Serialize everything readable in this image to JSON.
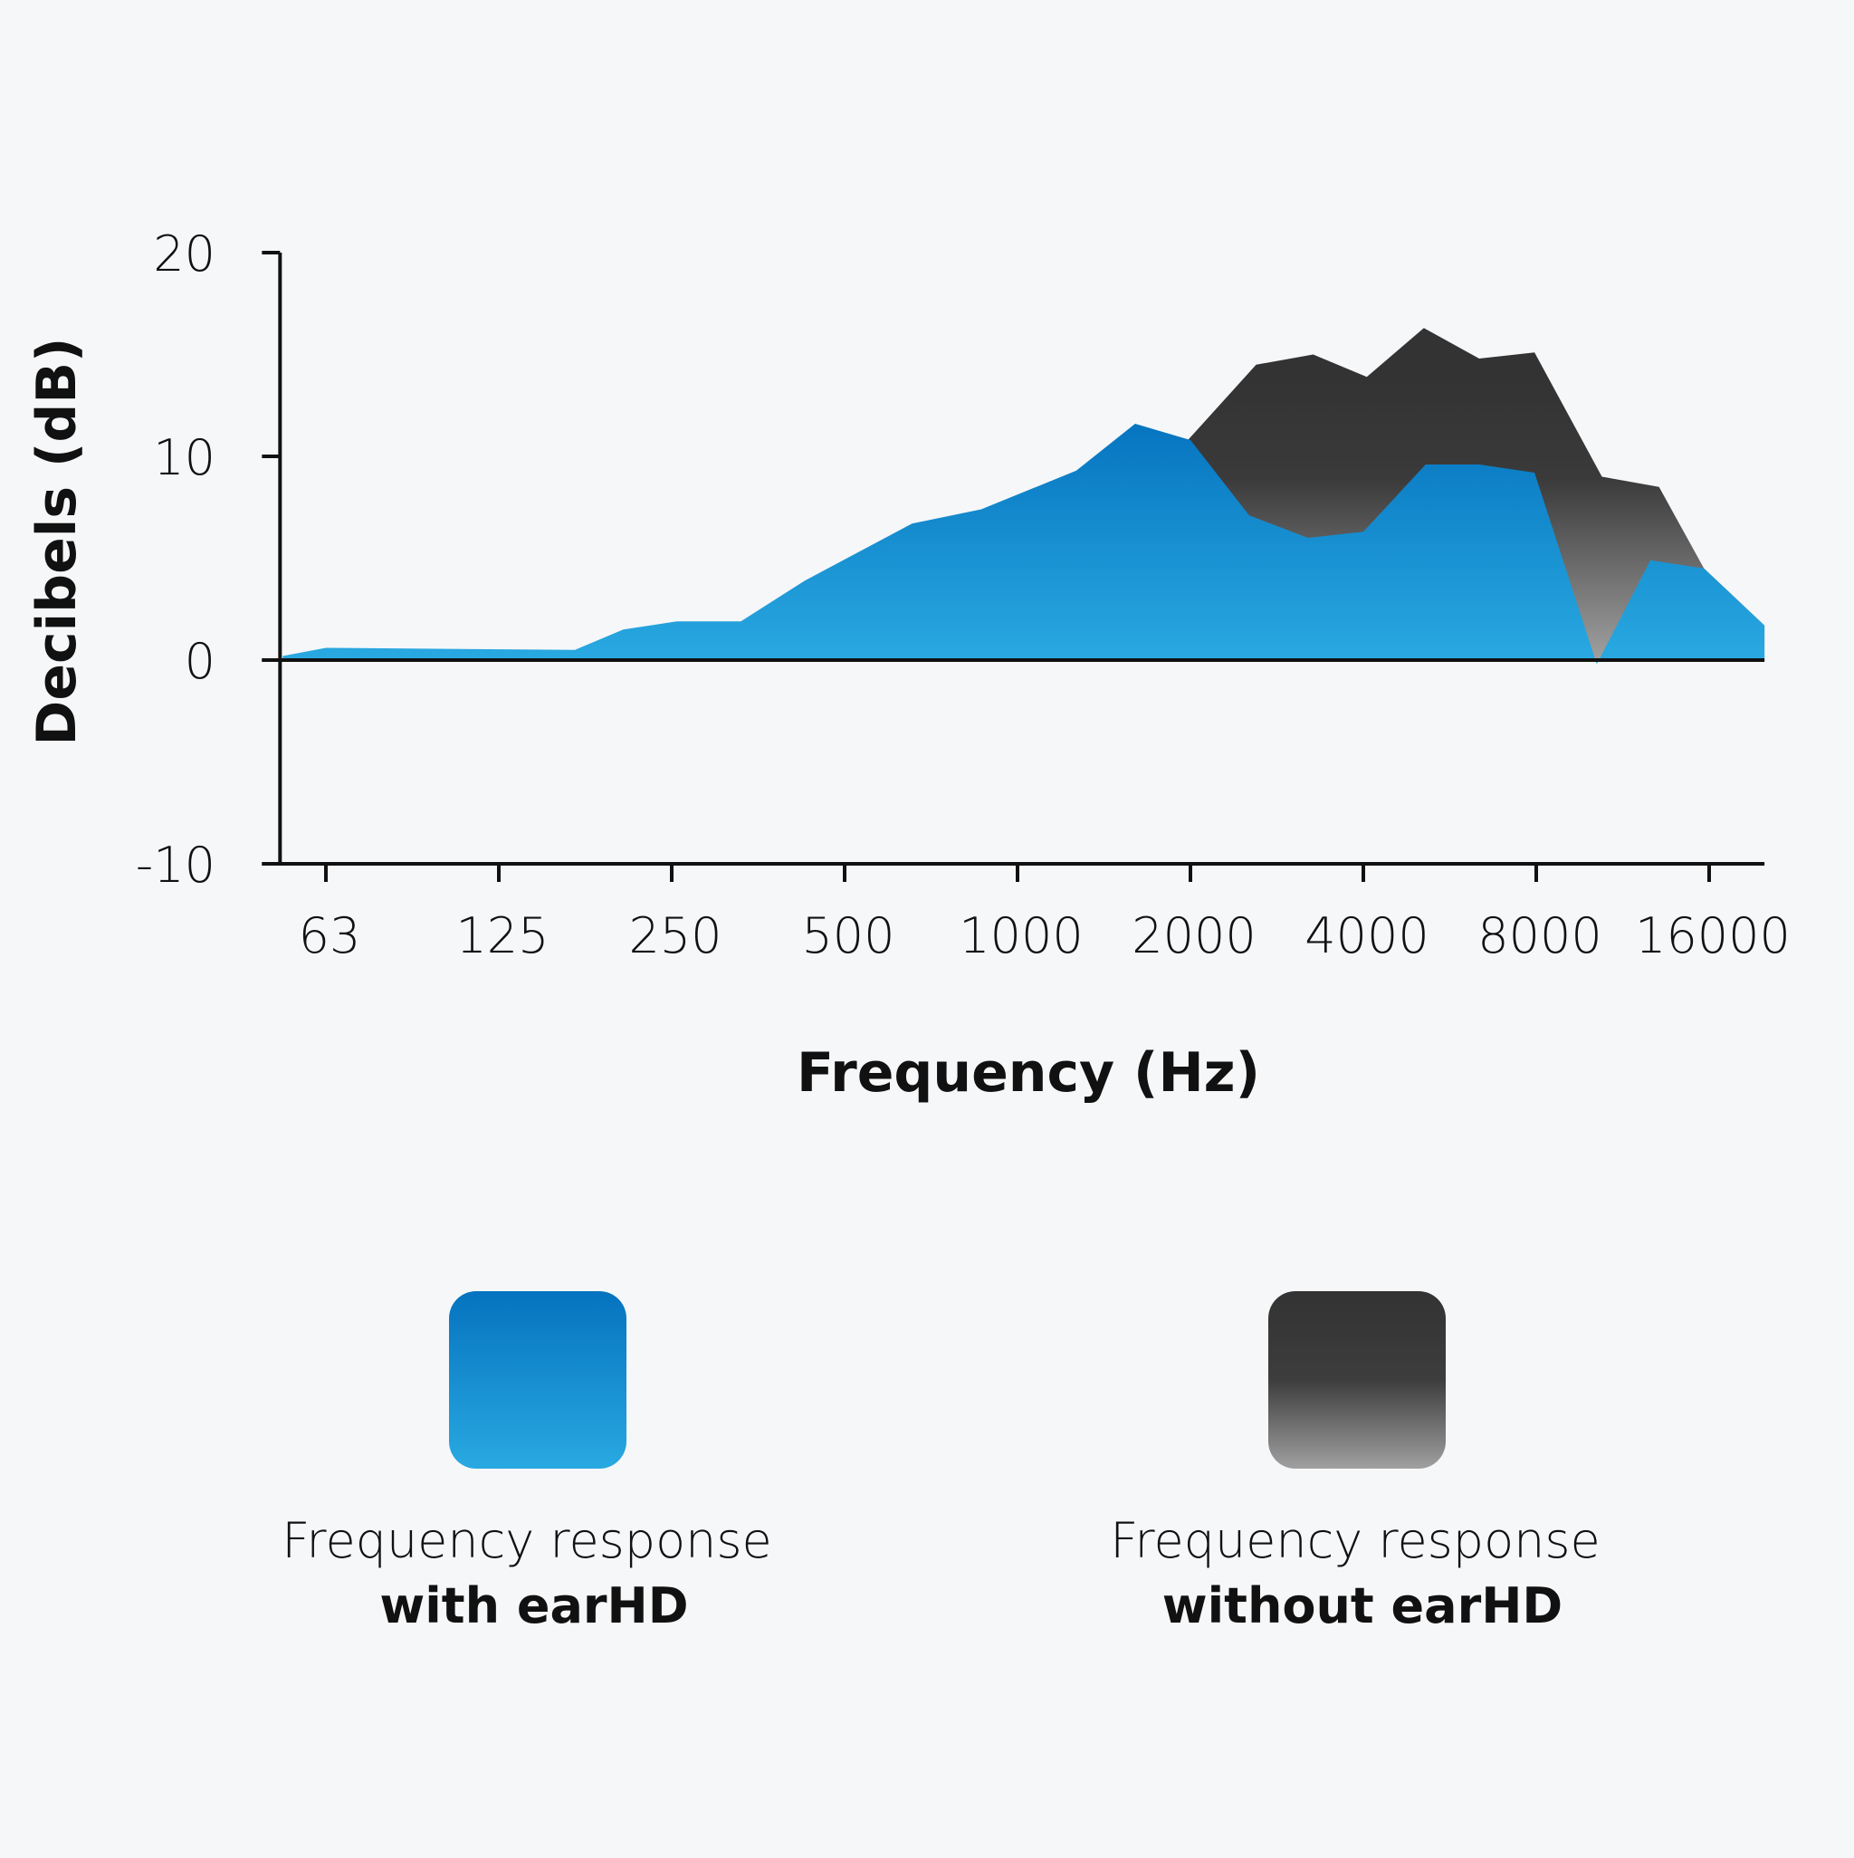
{
  "chart_data": {
    "type": "area",
    "title": "",
    "xlabel": "Frequency (Hz)",
    "ylabel": "Decibels (dB)",
    "x_scale": "octave index (0 = 63 Hz ... 8 = 16000 Hz)",
    "x_range": [
      -0.26,
      8.32
    ],
    "ylim": [
      -10,
      20
    ],
    "yticks": [
      "20",
      "10",
      "0",
      "-10"
    ],
    "ytick_values": [
      20,
      10,
      0,
      -10
    ],
    "xticks": [
      "63",
      "125",
      "250",
      "500",
      "1000",
      "2000",
      "4000",
      "8000",
      "16000"
    ],
    "grid": false,
    "legend_position": "bottom",
    "series": [
      {
        "name": "Frequency response without earHD",
        "color_top": "#333333",
        "color_bottom": "#a0a0a0",
        "points": [
          [
            4.9,
            10.0
          ],
          [
            5.38,
            14.5
          ],
          [
            5.71,
            15.0
          ],
          [
            6.02,
            13.9
          ],
          [
            6.35,
            16.3
          ],
          [
            6.67,
            14.8
          ],
          [
            6.99,
            15.1
          ],
          [
            7.38,
            9.0
          ],
          [
            7.71,
            8.5
          ],
          [
            7.97,
            4.5
          ],
          [
            8.32,
            1.7
          ]
        ]
      },
      {
        "name": "Frequency response with earHD",
        "color_top": "#0573bf",
        "color_bottom": "#29a9e1",
        "points": [
          [
            -0.25,
            0.2
          ],
          [
            0,
            0.6
          ],
          [
            1.44,
            0.5
          ],
          [
            1.72,
            1.5
          ],
          [
            2.03,
            1.9
          ],
          [
            2.4,
            1.9
          ],
          [
            2.77,
            3.9
          ],
          [
            3.39,
            6.7
          ],
          [
            3.79,
            7.4
          ],
          [
            4.34,
            9.3
          ],
          [
            4.68,
            11.6
          ],
          [
            5.0,
            10.8
          ],
          [
            5.34,
            7.1
          ],
          [
            5.68,
            6.0
          ],
          [
            6.0,
            6.3
          ],
          [
            6.36,
            9.6
          ],
          [
            6.67,
            9.6
          ],
          [
            6.99,
            9.2
          ],
          [
            7.35,
            -0.2
          ],
          [
            7.66,
            4.9
          ],
          [
            7.97,
            4.5
          ],
          [
            8.32,
            1.7
          ]
        ]
      }
    ]
  },
  "legend": [
    {
      "line1": "Frequency response",
      "line2": "with earHD"
    },
    {
      "line1": "Frequency response",
      "line2": "without earHD"
    }
  ]
}
